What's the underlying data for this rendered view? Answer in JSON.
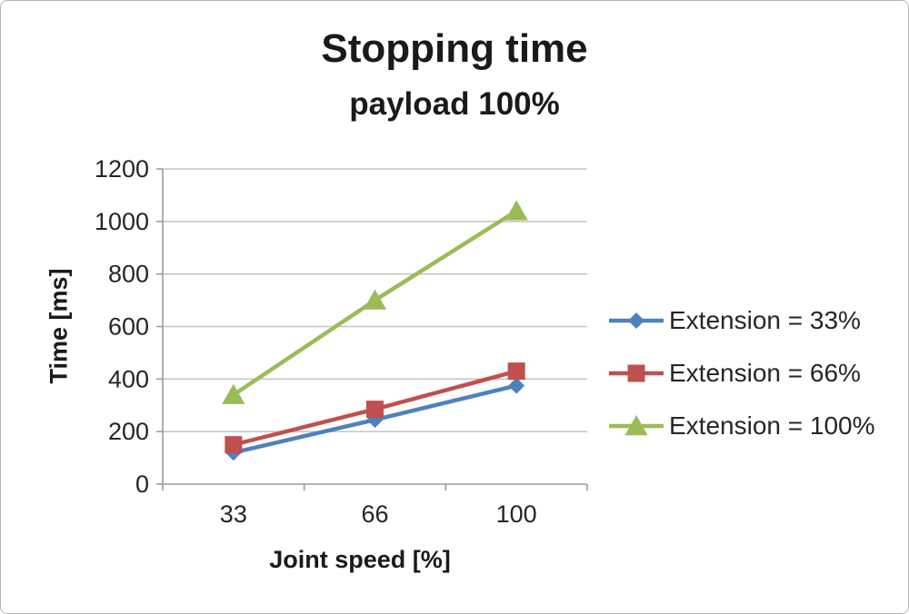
{
  "chart_data": {
    "type": "line",
    "title": "Stopping time",
    "subtitle": "payload 100%",
    "xlabel": "Joint speed [%]",
    "ylabel": "Time [ms]",
    "categories": [
      "33",
      "66",
      "100"
    ],
    "series": [
      {
        "name": "Extension = 33%",
        "color": "#4F81BD",
        "marker": "diamond",
        "values": [
          120,
          245,
          375
        ]
      },
      {
        "name": "Extension = 66%",
        "color": "#C0504D",
        "marker": "square",
        "values": [
          150,
          285,
          430
        ]
      },
      {
        "name": "Extension = 100%",
        "color": "#9BBB59",
        "marker": "triangle",
        "values": [
          340,
          700,
          1040
        ]
      }
    ],
    "ylim": [
      0,
      1200
    ],
    "ytick_step": 200,
    "grid": true,
    "legend_position": "right"
  },
  "colors": {
    "gridline": "#c6c6c6",
    "axis": "#9b9b9b",
    "tick_label": "#262626"
  }
}
